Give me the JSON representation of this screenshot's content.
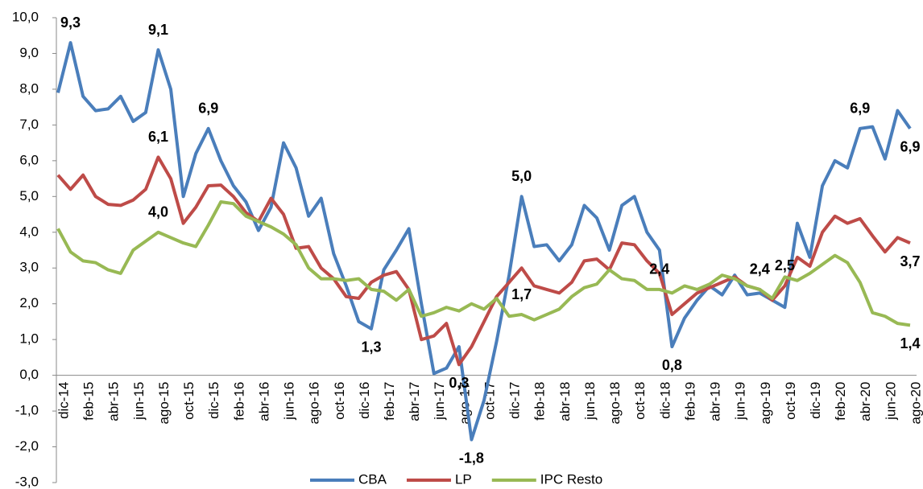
{
  "chart_data": {
    "type": "line",
    "categories": [
      "dic-14",
      null,
      "feb-15",
      null,
      "abr-15",
      null,
      "jun-15",
      null,
      "ago-15",
      null,
      "oct-15",
      null,
      "dic-15",
      null,
      "feb-16",
      null,
      "abr-16",
      null,
      "jun-16",
      null,
      "ago-16",
      null,
      "oct-16",
      null,
      "dic-16",
      null,
      "feb-17",
      null,
      "abr-17",
      null,
      "jun-17",
      null,
      "ago-17",
      null,
      "oct-17",
      null,
      "dic-17",
      null,
      "feb-18",
      null,
      "abr-18",
      null,
      "jun-18",
      null,
      "ago-18",
      null,
      "oct-18",
      null,
      "dic-18",
      null,
      "feb-19",
      null,
      "abr-19",
      null,
      "jun-19",
      null,
      "ago-19",
      null,
      "oct-19",
      null,
      "dic-19",
      null,
      "feb-20",
      null,
      "abr-20",
      null,
      "jun-20",
      null,
      "ago-20"
    ],
    "series": [
      {
        "name": "CBA",
        "color": "#4a7ebb",
        "values": [
          7.9,
          9.3,
          7.8,
          7.4,
          7.45,
          7.8,
          7.1,
          7.35,
          9.1,
          8.0,
          5.0,
          6.2,
          6.9,
          6.0,
          5.3,
          4.85,
          4.05,
          4.7,
          6.5,
          5.8,
          4.45,
          4.95,
          3.4,
          2.5,
          1.5,
          1.3,
          2.95,
          3.5,
          4.1,
          2.0,
          0.05,
          0.2,
          0.8,
          -1.8,
          -0.7,
          0.95,
          2.8,
          5.0,
          3.6,
          3.65,
          3.2,
          3.65,
          4.75,
          4.4,
          3.5,
          4.75,
          5.0,
          4.0,
          3.5,
          0.8,
          1.6,
          2.1,
          2.5,
          2.25,
          2.8,
          2.25,
          2.3,
          2.1,
          1.9,
          4.25,
          3.3,
          5.3,
          6.0,
          5.8,
          6.9,
          6.95,
          6.05,
          7.4,
          6.9
        ],
        "value_labels": [
          null,
          "9,3",
          null,
          null,
          null,
          null,
          null,
          null,
          "9,1",
          null,
          null,
          null,
          "6,9",
          null,
          null,
          null,
          null,
          null,
          null,
          null,
          null,
          null,
          null,
          null,
          null,
          "1,3",
          null,
          null,
          null,
          null,
          null,
          null,
          null,
          "-1,8",
          null,
          null,
          null,
          "5,0",
          null,
          null,
          null,
          null,
          null,
          null,
          null,
          null,
          null,
          null,
          null,
          "0,8",
          null,
          null,
          null,
          null,
          null,
          null,
          null,
          null,
          null,
          null,
          null,
          null,
          null,
          null,
          "6,9",
          null,
          null,
          null,
          "6,9"
        ]
      },
      {
        "name": "LP",
        "color": "#be4b48",
        "values": [
          5.6,
          5.2,
          5.6,
          5.0,
          4.78,
          4.75,
          4.9,
          5.2,
          6.1,
          5.5,
          4.25,
          4.7,
          5.3,
          5.32,
          5.0,
          4.55,
          4.3,
          4.95,
          4.5,
          3.55,
          3.6,
          3.0,
          2.7,
          2.2,
          2.15,
          2.6,
          2.8,
          2.9,
          2.4,
          1.0,
          1.1,
          1.45,
          0.3,
          0.8,
          1.5,
          2.2,
          2.6,
          3.0,
          2.5,
          2.4,
          2.3,
          2.6,
          3.2,
          3.25,
          2.95,
          3.7,
          3.65,
          3.2,
          2.85,
          1.7,
          2.0,
          2.3,
          2.45,
          2.6,
          2.75,
          2.5,
          2.4,
          2.1,
          2.5,
          3.3,
          3.05,
          4.0,
          4.45,
          4.25,
          4.38,
          3.9,
          3.45,
          3.85,
          3.7
        ],
        "value_labels": [
          null,
          null,
          null,
          null,
          null,
          null,
          null,
          null,
          "6,1",
          null,
          null,
          null,
          null,
          null,
          null,
          null,
          null,
          null,
          null,
          null,
          null,
          null,
          null,
          null,
          null,
          null,
          null,
          null,
          null,
          null,
          null,
          null,
          "0,3",
          null,
          null,
          null,
          null,
          null,
          null,
          null,
          null,
          null,
          null,
          null,
          null,
          null,
          null,
          null,
          null,
          null,
          null,
          null,
          null,
          null,
          null,
          null,
          "2,4",
          null,
          "2,5",
          null,
          null,
          null,
          null,
          null,
          null,
          null,
          null,
          null,
          "3,7"
        ]
      },
      {
        "name": "IPC Resto",
        "color": "#98b954",
        "values": [
          4.1,
          3.45,
          3.2,
          3.15,
          2.95,
          2.85,
          3.5,
          3.75,
          4.0,
          3.85,
          3.7,
          3.6,
          4.2,
          4.85,
          4.8,
          4.45,
          4.3,
          4.15,
          3.95,
          3.65,
          3.0,
          2.7,
          2.7,
          2.65,
          2.7,
          2.4,
          2.35,
          2.1,
          2.4,
          1.65,
          1.75,
          1.9,
          1.8,
          2.0,
          1.85,
          2.15,
          1.65,
          1.7,
          1.55,
          1.7,
          1.85,
          2.2,
          2.45,
          2.55,
          2.95,
          2.7,
          2.65,
          2.4,
          2.4,
          2.3,
          2.5,
          2.4,
          2.55,
          2.8,
          2.7,
          2.5,
          2.4,
          2.15,
          2.75,
          2.65,
          2.85,
          3.1,
          3.35,
          3.15,
          2.6,
          1.75,
          1.65,
          1.45,
          1.4
        ],
        "value_labels": [
          null,
          null,
          null,
          null,
          null,
          null,
          null,
          null,
          "4,0",
          null,
          null,
          null,
          null,
          null,
          null,
          null,
          null,
          null,
          null,
          null,
          null,
          null,
          null,
          null,
          null,
          null,
          null,
          null,
          null,
          null,
          null,
          null,
          null,
          null,
          null,
          null,
          null,
          "1,7",
          null,
          null,
          null,
          null,
          null,
          null,
          null,
          null,
          null,
          null,
          "2,4",
          null,
          null,
          null,
          null,
          null,
          null,
          null,
          "2,4",
          null,
          null,
          null,
          null,
          null,
          null,
          null,
          null,
          null,
          null,
          null,
          "1,4"
        ]
      }
    ],
    "ylim": [
      -3,
      10
    ],
    "yticks": [
      {
        "value": -3,
        "label": "-3,0"
      },
      {
        "value": -2,
        "label": "-2,0"
      },
      {
        "value": -1,
        "label": "-1,0"
      },
      {
        "value": 0,
        "label": "0,0"
      },
      {
        "value": 1,
        "label": "1,0"
      },
      {
        "value": 2,
        "label": "2,0"
      },
      {
        "value": 3,
        "label": "3,0"
      },
      {
        "value": 4,
        "label": "4,0"
      },
      {
        "value": 5,
        "label": "5,0"
      },
      {
        "value": 6,
        "label": "6,0"
      },
      {
        "value": 7,
        "label": "7,0"
      },
      {
        "value": 8,
        "label": "8,0"
      },
      {
        "value": 9,
        "label": "9,0"
      },
      {
        "value": 10,
        "label": "10,0"
      }
    ],
    "legend": "bottom"
  }
}
